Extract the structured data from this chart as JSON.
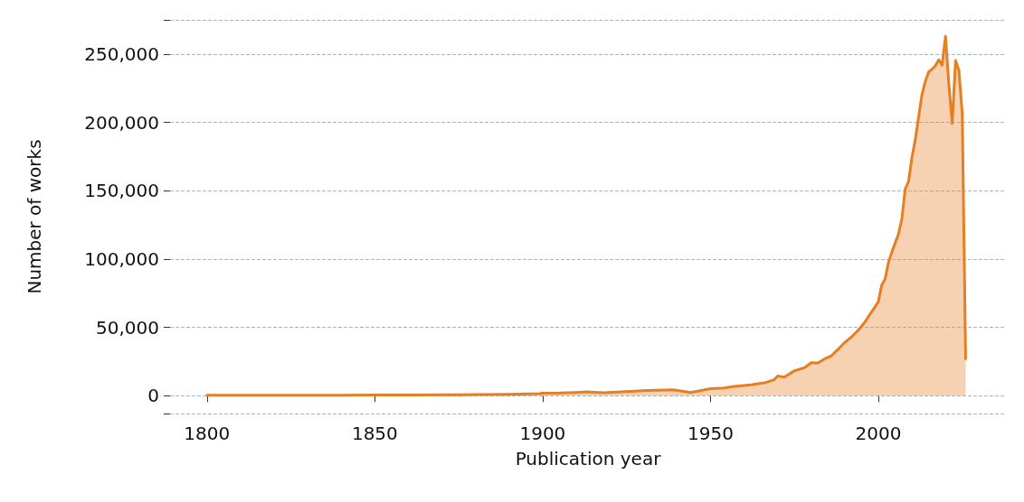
{
  "chart_data": {
    "type": "area",
    "xlabel": "Publication year",
    "ylabel": "Number of works",
    "color": "#e67e22",
    "x": [
      1800,
      1810,
      1820,
      1830,
      1840,
      1850,
      1860,
      1870,
      1880,
      1890,
      1895,
      1899,
      1900,
      1905,
      1910,
      1913,
      1918,
      1925,
      1931,
      1939,
      1944,
      1950,
      1954,
      1957,
      1962,
      1966,
      1969,
      1970,
      1972,
      1975,
      1978,
      1980,
      1982,
      1984,
      1986,
      1988,
      1990,
      1992,
      1994,
      1996,
      1997,
      1999,
      2000,
      2001,
      2002,
      2003,
      2004,
      2005,
      2006,
      2007,
      2008,
      2009,
      2010,
      2011,
      2012,
      2013,
      2014,
      2015,
      2016,
      2017,
      2018,
      2019,
      2020,
      2021,
      2022,
      2023,
      2024,
      2025,
      2026
    ],
    "values": [
      300,
      300,
      300,
      300,
      400,
      500,
      600,
      700,
      800,
      1100,
      1300,
      1500,
      1900,
      2000,
      2400,
      2800,
      2200,
      3000,
      3800,
      4400,
      2400,
      5100,
      5600,
      6800,
      8000,
      9400,
      11700,
      14500,
      13600,
      18300,
      20500,
      24200,
      24000,
      27000,
      29200,
      34000,
      39000,
      43000,
      47900,
      54000,
      57800,
      65000,
      68800,
      80900,
      85300,
      97400,
      105000,
      111700,
      118300,
      129300,
      151200,
      156800,
      174300,
      187500,
      204000,
      220500,
      230000,
      237000,
      238800,
      241500,
      245800,
      241900,
      263000,
      228200,
      199200,
      245200,
      238100,
      206300,
      27000
    ],
    "xlim": [
      1789,
      2038
    ],
    "xticks": [
      1800,
      1850,
      1900,
      1950,
      2000
    ],
    "ylim": [
      -13000,
      275000
    ],
    "yticks": [
      {
        "value": -13000,
        "label": null
      },
      {
        "value": 0,
        "label": "0"
      },
      {
        "value": 50000,
        "label": "50,000"
      },
      {
        "value": 100000,
        "label": "100,000"
      },
      {
        "value": 150000,
        "label": "150,000"
      },
      {
        "value": 200000,
        "label": "200,000"
      },
      {
        "value": 250000,
        "label": "250,000"
      },
      {
        "value": 275000,
        "label": null
      }
    ],
    "grid": "y",
    "marker": "none",
    "line_style": "solid"
  }
}
